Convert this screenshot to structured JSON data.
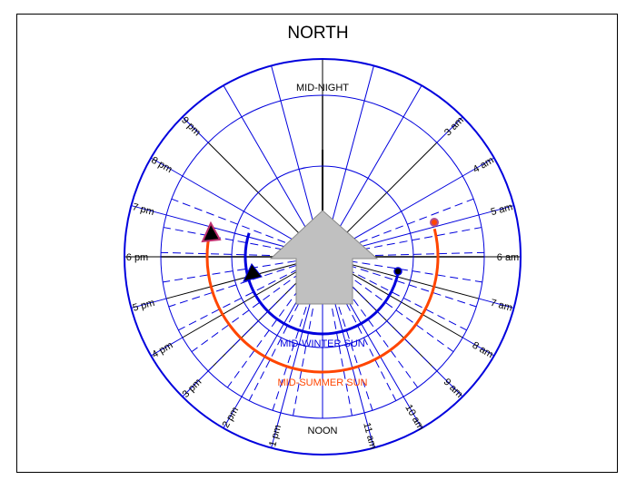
{
  "title": "NORTH",
  "top_label": "MID-NIGHT",
  "bottom_label": "NOON",
  "hours": [
    {
      "text": "6 am",
      "h": 6
    },
    {
      "text": "7 am",
      "h": 7
    },
    {
      "text": "8 am",
      "h": 8
    },
    {
      "text": "9 am",
      "h": 9
    },
    {
      "text": "10 am",
      "h": 10
    },
    {
      "text": "11 am",
      "h": 11
    },
    {
      "text": "1 pm",
      "h": 13
    },
    {
      "text": "2 pm",
      "h": 14
    },
    {
      "text": "3 pm",
      "h": 15
    },
    {
      "text": "4 pm",
      "h": 16
    },
    {
      "text": "5 pm",
      "h": 17
    },
    {
      "text": "6 pm",
      "h": 18
    },
    {
      "text": "7 pm",
      "h": 19
    },
    {
      "text": "8 pm",
      "h": 20
    },
    {
      "text": "9 pm",
      "h": 21
    },
    {
      "text": "3 am",
      "h": 3
    },
    {
      "text": "4 am",
      "h": 4
    },
    {
      "text": "5 am",
      "h": 5
    }
  ],
  "winter_label": "MID-WINTER SUN",
  "summer_label": "MID-SUMMER SUN",
  "colors": {
    "blue": "#0000dd",
    "orange": "#ff4500",
    "arrow_fill": "#c0c0c0",
    "arrow_stroke": "#888888",
    "black": "#000000"
  }
}
